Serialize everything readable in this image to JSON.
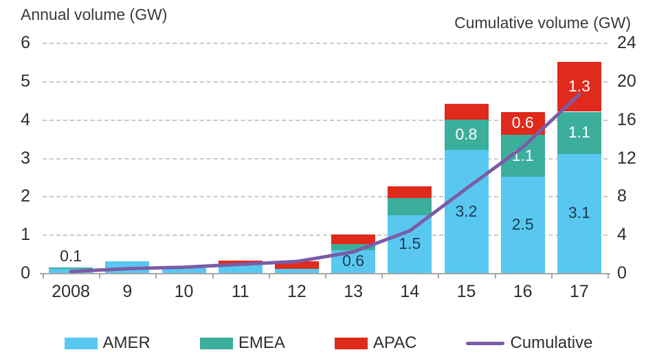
{
  "chart_data": {
    "type": "bar",
    "subtype": "stacked-bar-with-line",
    "categories": [
      "2008",
      "9",
      "10",
      "11",
      "12",
      "13",
      "14",
      "15",
      "16",
      "17"
    ],
    "series": [
      {
        "name": "AMER",
        "color": "#58C8F0",
        "values": [
          0.1,
          0.3,
          0.15,
          0.22,
          0.1,
          0.6,
          1.5,
          3.2,
          2.5,
          3.1
        ],
        "labels": [
          null,
          null,
          null,
          null,
          null,
          "0.6",
          "1.5",
          "3.2",
          "2.5",
          "3.1"
        ],
        "label_color": "#1E3A54"
      },
      {
        "name": "EMEA",
        "color": "#3BAE9C",
        "values": [
          0.05,
          0,
          0,
          0,
          0,
          0.15,
          0.45,
          0.8,
          1.1,
          1.1
        ],
        "labels": [
          null,
          null,
          null,
          null,
          null,
          null,
          null,
          "0.8",
          "1.1",
          "1.1"
        ],
        "label_color": "#FFFFFF"
      },
      {
        "name": "APAC",
        "color": "#DF2A1C",
        "values": [
          0,
          0,
          0,
          0.1,
          0.2,
          0.25,
          0.3,
          0.4,
          0.6,
          1.3
        ],
        "labels": [
          null,
          null,
          null,
          null,
          null,
          null,
          null,
          null,
          "0.6",
          "1.3"
        ],
        "label_color": "#FFFFFF"
      }
    ],
    "line": {
      "name": "Cumulative",
      "color": "#7B5CA6",
      "values": [
        0.15,
        0.45,
        0.6,
        0.9,
        1.2,
        2.2,
        4.4,
        8.8,
        13.1,
        18.6
      ]
    },
    "outside_labels": [
      {
        "category_index": 0,
        "text": "0.1"
      }
    ],
    "left_axis": {
      "title": "Annual volume (GW)",
      "ticks": [
        "0",
        "1",
        "2",
        "3",
        "4",
        "5",
        "6"
      ],
      "min": 0,
      "max": 6
    },
    "right_axis": {
      "title": "Cumulative volume (GW)",
      "ticks": [
        "0",
        "4",
        "8",
        "12",
        "16",
        "20",
        "24"
      ],
      "min": 0,
      "max": 24
    },
    "grid": "dashed horizontal",
    "legend_position": "bottom",
    "legend": [
      {
        "label": "AMER",
        "color": "#58C8F0",
        "type": "rect"
      },
      {
        "label": "EMEA",
        "color": "#3BAE9C",
        "type": "rect"
      },
      {
        "label": "APAC",
        "color": "#DF2A1C",
        "type": "rect"
      },
      {
        "label": "Cumulative",
        "color": "#7B5CA6",
        "type": "line"
      }
    ]
  }
}
